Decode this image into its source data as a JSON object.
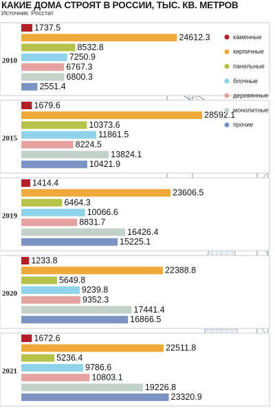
{
  "header": {
    "title": "КАКИЕ ДОМА СТРОЯТ В РОССИИ, ТЫС. КВ. МЕТРОВ",
    "source": "Источник: Росстат"
  },
  "colors": {
    "каменные": "#b3202a",
    "кирпичные": "#eea93a",
    "панельные": "#b6c24a",
    "блочные": "#8fd3ea",
    "деревянные": "#e5a3a0",
    "монолитные": "#c3d2c8",
    "прочие": "#7a93c3"
  },
  "chart_data": {
    "type": "bar",
    "orientation": "horizontal",
    "title": "КАКИЕ ДОМА СТРОЯТ В РОССИИ, ТЫС. КВ. МЕТРОВ",
    "xlim": [
      0,
      28592.1
    ],
    "legend_position": "right",
    "categories": [
      "каменные",
      "кирпичные",
      "панельные",
      "блочные",
      "деревянные",
      "монолитные",
      "прочие"
    ],
    "groups": [
      {
        "year": "2010",
        "values": [
          1737.5,
          24612.3,
          8532.8,
          7250.9,
          6767.3,
          6800.3,
          2551.4
        ],
        "labels": [
          "1737.5",
          "24612.3",
          "8532.8",
          "7250.9",
          "6767.3",
          "6800.3",
          "2551.4"
        ]
      },
      {
        "year": "2015",
        "values": [
          1679.6,
          28592.1,
          10373.6,
          11861.5,
          8224.5,
          13824.1,
          10421.9
        ],
        "labels": [
          "1679.6",
          "28592.1",
          "10373.6",
          "11861.5",
          "8224.5",
          "13824.1",
          "10421.9"
        ]
      },
      {
        "year": "2019",
        "values": [
          1414.4,
          23606.5,
          6464.3,
          10066.6,
          8831.7,
          16426.4,
          15225.1
        ],
        "labels": [
          "1414.4",
          "23606.5",
          "6464.3",
          "10066.6",
          "8831.7",
          "16426.4",
          "15225.1"
        ]
      },
      {
        "year": "2020",
        "values": [
          1233.8,
          22388.8,
          5649.8,
          9239.8,
          9352.3,
          17441.4,
          16866.5
        ],
        "labels": [
          "1233.8",
          "22388.8",
          "5649.8",
          "9239.8",
          "9352.3",
          "17441.4",
          "16866.5"
        ]
      },
      {
        "year": "2021",
        "values": [
          1672.6,
          22511.8,
          5236.4,
          9786.6,
          10803.1,
          19226.8,
          23320.9
        ],
        "labels": [
          "1672.6",
          "22511.8",
          "5236.4",
          "9786.6",
          "10803.1",
          "19226.8",
          "23320.9"
        ]
      }
    ]
  }
}
